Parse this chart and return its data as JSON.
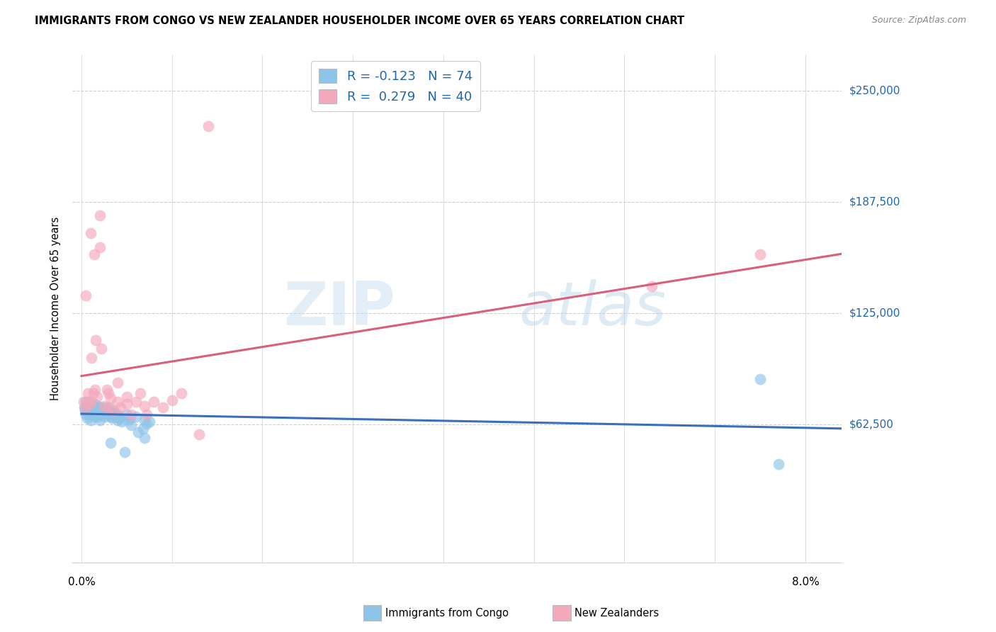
{
  "title": "IMMIGRANTS FROM CONGO VS NEW ZEALANDER HOUSEHOLDER INCOME OVER 65 YEARS CORRELATION CHART",
  "source": "Source: ZipAtlas.com",
  "ylabel": "Householder Income Over 65 years",
  "legend_blue_label": "Immigrants from Congo",
  "legend_pink_label": "New Zealanders",
  "ytick_labels": [
    "$62,500",
    "$125,000",
    "$187,500",
    "$250,000"
  ],
  "ytick_values": [
    62500,
    125000,
    187500,
    250000
  ],
  "ymax": 270000,
  "ymin": -15000,
  "xmin": -0.001,
  "xmax": 0.084,
  "watermark_zip": "ZIP",
  "watermark_atlas": "atlas",
  "blue_color": "#8ec4e8",
  "pink_color": "#f4a8bb",
  "blue_line_color": "#3a6fbf",
  "pink_line_color": "#d95f7a",
  "background_color": "#ffffff",
  "grid_color": "#d0d0d0",
  "blue_x": [
    0.0003,
    0.0004,
    0.0005,
    0.0005,
    0.0006,
    0.0006,
    0.0007,
    0.0007,
    0.0007,
    0.0008,
    0.0008,
    0.0009,
    0.0009,
    0.001,
    0.001,
    0.001,
    0.001,
    0.0011,
    0.0011,
    0.0012,
    0.0012,
    0.0013,
    0.0013,
    0.0014,
    0.0014,
    0.0015,
    0.0015,
    0.0016,
    0.0016,
    0.0017,
    0.0017,
    0.0018,
    0.0018,
    0.0019,
    0.002,
    0.002,
    0.002,
    0.0021,
    0.0022,
    0.0023,
    0.0024,
    0.0025,
    0.0026,
    0.0027,
    0.0028,
    0.003,
    0.003,
    0.0031,
    0.0032,
    0.0033,
    0.0034,
    0.0035,
    0.0036,
    0.0038,
    0.004,
    0.004,
    0.0041,
    0.0042,
    0.0045,
    0.005,
    0.0052,
    0.0054,
    0.006,
    0.007,
    0.0072,
    0.0075,
    0.0032,
    0.0048,
    0.0055,
    0.0063,
    0.0068,
    0.007,
    0.075,
    0.077
  ],
  "blue_y": [
    72000,
    70000,
    75000,
    68000,
    73000,
    66000,
    74000,
    71000,
    69000,
    72000,
    68000,
    75000,
    70000,
    73000,
    68000,
    72000,
    65000,
    74000,
    70000,
    73000,
    68000,
    72000,
    69000,
    74000,
    67000,
    73000,
    70000,
    72000,
    68000,
    71000,
    69000,
    73000,
    67000,
    70000,
    72000,
    68000,
    65000,
    71000,
    70000,
    68000,
    72000,
    69000,
    67000,
    71000,
    68000,
    72000,
    69000,
    70000,
    67000,
    68000,
    66000,
    70000,
    69000,
    67000,
    68000,
    65000,
    67000,
    66000,
    64000,
    68000,
    65000,
    66000,
    67000,
    65000,
    63000,
    64000,
    52000,
    47000,
    62000,
    58000,
    60000,
    55000,
    88000,
    40000
  ],
  "pink_x": [
    0.0002,
    0.0004,
    0.0005,
    0.0007,
    0.0008,
    0.001,
    0.001,
    0.0011,
    0.0013,
    0.0014,
    0.0015,
    0.0016,
    0.0017,
    0.002,
    0.002,
    0.0022,
    0.0025,
    0.0028,
    0.003,
    0.003,
    0.0032,
    0.0035,
    0.004,
    0.004,
    0.0043,
    0.005,
    0.005,
    0.0055,
    0.006,
    0.0065,
    0.007,
    0.0072,
    0.008,
    0.009,
    0.01,
    0.011,
    0.013,
    0.014,
    0.063,
    0.075
  ],
  "pink_y": [
    75000,
    72000,
    135000,
    80000,
    75000,
    170000,
    74000,
    100000,
    80000,
    158000,
    82000,
    110000,
    78000,
    180000,
    162000,
    105000,
    73000,
    82000,
    72000,
    80000,
    77000,
    70000,
    86000,
    75000,
    72000,
    74000,
    78000,
    68000,
    75000,
    80000,
    73000,
    68000,
    75000,
    72000,
    76000,
    80000,
    57000,
    230000,
    140000,
    158000
  ]
}
